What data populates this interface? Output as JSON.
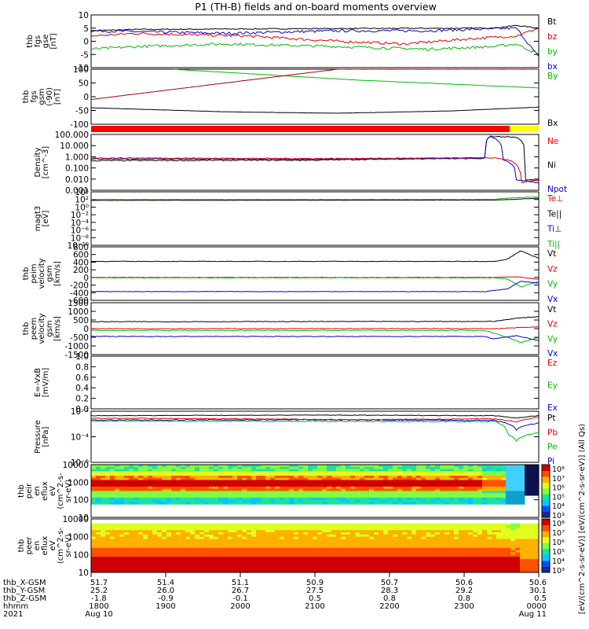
{
  "chart_data": {
    "type": "line",
    "title": "P1  (TH-B)  fields and on-board moments overview",
    "time_axis": {
      "row_labels": [
        "thb_X-GSM",
        "thb_Y-GSM",
        "thb_Z-GSM",
        "hhmm",
        "2021"
      ],
      "ticks": [
        {
          "x": "51.7",
          "y": "25.2",
          "z": "-1.8",
          "hhmm": "1800",
          "date": "Aug 10"
        },
        {
          "x": "51.4",
          "y": "26.0",
          "z": "-0.9",
          "hhmm": "1900",
          "date": ""
        },
        {
          "x": "51.1",
          "y": "26.7",
          "z": "-0.1",
          "hhmm": "2000",
          "date": ""
        },
        {
          "x": "50.9",
          "y": "27.5",
          "z": "0.5",
          "hhmm": "2100",
          "date": ""
        },
        {
          "x": "50.7",
          "y": "28.3",
          "z": "0.8",
          "hhmm": "2200",
          "date": ""
        },
        {
          "x": "50.6",
          "y": "29.2",
          "z": "0.8",
          "hhmm": "2300",
          "date": ""
        },
        {
          "x": "50.6",
          "y": "30.1",
          "z": "0.5",
          "hhmm": "0000",
          "date": "Aug 11"
        }
      ]
    },
    "panels": [
      {
        "id": "fgs_gse",
        "ylabel": [
          "thb",
          "fgs",
          "gse",
          "[nT]"
        ],
        "yticks": [
          "10",
          "5",
          "0",
          "-5",
          "-10"
        ],
        "legend": [
          {
            "name": "Bt",
            "color": "#000000"
          },
          {
            "name": "bz",
            "color": "#dd0000"
          },
          {
            "name": "by",
            "color": "#00bb00"
          },
          {
            "name": "bx",
            "color": "#0000cc"
          }
        ]
      },
      {
        "id": "fgs_gsm",
        "ylabel": [
          "thb",
          "fgs",
          "gsm",
          "(-90)",
          "[nT]"
        ],
        "yticks": [
          "100",
          "50",
          "0",
          "-50",
          "-100"
        ],
        "legend": [
          {
            "name": "By",
            "color": "#00bb00"
          },
          {
            "name": "Bx",
            "color": "#000000"
          }
        ]
      },
      {
        "id": "density",
        "ylabel": [
          "Density",
          "[cm^-3]"
        ],
        "yticks": [
          "100.000",
          "10.000",
          "1.000",
          "0.100",
          "0.010",
          "0.001"
        ],
        "legend": [
          {
            "name": "Ne",
            "color": "#dd0000"
          },
          {
            "name": "Ni",
            "color": "#000000"
          },
          {
            "name": "Npot",
            "color": "#0000cc"
          }
        ]
      },
      {
        "id": "temp",
        "ylabel": [
          "magt3",
          "[eV]"
        ],
        "yticks": [
          "10⁴",
          "10²",
          "10⁰",
          "10⁻²",
          "10⁻⁴",
          "10⁻⁶",
          "10⁻⁸",
          "10⁻¹⁰"
        ],
        "legend": [
          {
            "name": "Te⊥",
            "color": "#dd0000"
          },
          {
            "name": "Te||",
            "color": "#000000"
          },
          {
            "name": "Ti⊥",
            "color": "#0000cc"
          },
          {
            "name": "Ti||",
            "color": "#00bb00"
          }
        ]
      },
      {
        "id": "ion_vel",
        "ylabel": [
          "thb",
          "peim",
          "velocity",
          "gsm",
          "[km/s]"
        ],
        "yticks": [
          "800",
          "600",
          "400",
          "200",
          "0",
          "-200",
          "-400",
          "-600"
        ],
        "legend": [
          {
            "name": "Vt",
            "color": "#000000"
          },
          {
            "name": "Vz",
            "color": "#dd0000"
          },
          {
            "name": "Vy",
            "color": "#00bb00"
          },
          {
            "name": "Vx",
            "color": "#0000cc"
          }
        ]
      },
      {
        "id": "ele_vel",
        "ylabel": [
          "thb",
          "peem",
          "velocity",
          "gsm",
          "[km/s]"
        ],
        "yticks": [
          "1500",
          "1000",
          "500",
          "0",
          "-500",
          "-1000",
          "-1500"
        ],
        "legend": [
          {
            "name": "Vt",
            "color": "#000000"
          },
          {
            "name": "Vz",
            "color": "#dd0000"
          },
          {
            "name": "Vy",
            "color": "#00bb00"
          },
          {
            "name": "Vx",
            "color": "#0000cc"
          }
        ]
      },
      {
        "id": "efield",
        "ylabel": [
          "E=-VxB",
          "[mV/m]"
        ],
        "yticks": [
          "1.0",
          "0.8",
          "0.6",
          "0.4",
          "0.2",
          "0.0"
        ],
        "legend": [
          {
            "name": "Ez",
            "color": "#dd0000"
          },
          {
            "name": "Ey",
            "color": "#00bb00"
          },
          {
            "name": "Ex",
            "color": "#0000cc"
          }
        ]
      },
      {
        "id": "pressure",
        "ylabel": [
          "Pressure",
          "[nPa]"
        ],
        "yticks": [
          "10⁻²",
          "10⁻⁴",
          "10⁻⁶"
        ],
        "legend": [
          {
            "name": "Pt",
            "color": "#000000"
          },
          {
            "name": "Pb",
            "color": "#dd0000"
          },
          {
            "name": "Pe",
            "color": "#00bb00"
          },
          {
            "name": "Pi",
            "color": "#0000cc"
          }
        ]
      },
      {
        "id": "ion_spec",
        "ylabel": [
          "thb",
          "peir",
          "en",
          "eflux",
          "eV",
          "(cm^2-s-",
          "sr-eV)"
        ],
        "yticks": [
          "10000",
          "1000",
          "100",
          "10"
        ]
      },
      {
        "id": "ele_spec",
        "ylabel": [
          "thb",
          "peer",
          "en",
          "eflux",
          "eV",
          "(cm^2-s-",
          "sr-eV)"
        ],
        "yticks": [
          "10000",
          "1000",
          "100",
          "10"
        ]
      }
    ],
    "colorbar": {
      "label": "[eV/(cm^2-s-sr-eV)]  [eV/(cm^2-s-sr-eV)]  (All Qs)",
      "ion_ticks": [
        "10⁸",
        "10⁷",
        "10⁶",
        "10⁵",
        "10⁴",
        "10³"
      ],
      "ele_ticks": [
        "10⁸",
        "10⁷",
        "10⁶",
        "10⁵",
        "10⁴",
        "10³"
      ]
    },
    "series_approx": {
      "fgs_gse": {
        "range": [
          -10,
          10
        ],
        "Bt": [
          [
            0,
            4
          ],
          [
            0.1,
            4.5
          ],
          [
            0.5,
            4.8
          ],
          [
            0.9,
            5
          ],
          [
            0.95,
            6
          ],
          [
            1,
            5
          ]
        ],
        "bz": [
          [
            0,
            2
          ],
          [
            0.1,
            3
          ],
          [
            0.35,
            2
          ],
          [
            0.55,
            0
          ],
          [
            0.7,
            -1
          ],
          [
            0.85,
            1
          ],
          [
            0.95,
            2
          ],
          [
            1,
            5
          ]
        ],
        "by": [
          [
            0,
            -3
          ],
          [
            0.1,
            -2
          ],
          [
            0.3,
            -1
          ],
          [
            0.55,
            -2
          ],
          [
            0.75,
            -3
          ],
          [
            0.9,
            -2
          ],
          [
            0.95,
            -1
          ],
          [
            1,
            -5
          ]
        ],
        "bx": [
          [
            0,
            4
          ],
          [
            0.3,
            3
          ],
          [
            0.55,
            4
          ],
          [
            0.75,
            4
          ],
          [
            0.95,
            5
          ],
          [
            1,
            -6
          ]
        ]
      },
      "fgs_gsm": {
        "range": [
          -100,
          100
        ],
        "By": [
          [
            0.18,
            100
          ],
          [
            0.6,
            60
          ],
          [
            1,
            32
          ]
        ],
        "Bx": [
          [
            0,
            -40
          ],
          [
            0.3,
            -55
          ],
          [
            0.55,
            -60
          ],
          [
            0.8,
            -52
          ],
          [
            1,
            -38
          ]
        ],
        "R": [
          [
            0,
            -10
          ],
          [
            0.55,
            100
          ]
        ]
      },
      "density": {
        "range": [
          0.001,
          300
        ],
        "Ne": [
          [
            0,
            1.5
          ],
          [
            0.5,
            1.3
          ],
          [
            0.9,
            1.5
          ],
          [
            0.93,
            1
          ],
          [
            0.96,
            0.005
          ],
          [
            1,
            0.01
          ]
        ],
        "Ni": [
          [
            0,
            0.8
          ],
          [
            0.5,
            0.9
          ],
          [
            0.88,
            1.5
          ],
          [
            0.89,
            200
          ],
          [
            0.95,
            150
          ],
          [
            0.97,
            0.01
          ],
          [
            1,
            0.01
          ]
        ],
        "Npot": [
          [
            0,
            1.2
          ],
          [
            0.5,
            1.1
          ],
          [
            0.88,
            1.3
          ],
          [
            0.89,
            200
          ],
          [
            0.92,
            1
          ],
          [
            0.95,
            0.01
          ],
          [
            1,
            0.005
          ]
        ]
      },
      "temp": {
        "range": [
          1e-10,
          100000.0
        ],
        "Te_par": [
          [
            0,
            400
          ],
          [
            0.9,
            500
          ],
          [
            0.95,
            800
          ],
          [
            1,
            1500
          ]
        ],
        "Ti_par": [
          [
            0,
            700
          ],
          [
            0.9,
            700
          ],
          [
            0.97,
            3000
          ],
          [
            1,
            3500
          ]
        ]
      },
      "ion_vel": {
        "range": [
          -600,
          800
        ],
        "Vt": [
          [
            0,
            420
          ],
          [
            0.9,
            420
          ],
          [
            0.93,
            480
          ],
          [
            0.96,
            700
          ],
          [
            1,
            500
          ]
        ],
        "Vz": [
          [
            0,
            0
          ],
          [
            0.9,
            0
          ],
          [
            0.95,
            20
          ],
          [
            1,
            -50
          ]
        ],
        "Vy": [
          [
            0,
            -10
          ],
          [
            0.9,
            -10
          ],
          [
            0.93,
            -40
          ],
          [
            0.96,
            -250
          ],
          [
            1,
            -100
          ]
        ],
        "Vx": [
          [
            0,
            -370
          ],
          [
            0.88,
            -370
          ],
          [
            0.93,
            -300
          ],
          [
            0.96,
            -100
          ],
          [
            1,
            -150
          ]
        ]
      },
      "ele_vel": {
        "range": [
          -1500,
          1500
        ],
        "Vt": [
          [
            0,
            400
          ],
          [
            0.9,
            420
          ],
          [
            0.95,
            600
          ],
          [
            1,
            700
          ]
        ],
        "Vz": [
          [
            0,
            0
          ],
          [
            0.9,
            0
          ],
          [
            1,
            100
          ]
        ],
        "Vy": [
          [
            0,
            -100
          ],
          [
            0.88,
            -100
          ],
          [
            0.93,
            -500
          ],
          [
            0.96,
            -800
          ],
          [
            1,
            -500
          ]
        ],
        "Vx": [
          [
            0,
            -450
          ],
          [
            0.88,
            -450
          ],
          [
            0.9,
            -600
          ],
          [
            0.95,
            -400
          ],
          [
            1,
            -700
          ]
        ]
      },
      "pressure": {
        "range": [
          1e-07,
          0.1
        ],
        "Pt": [
          [
            0,
            0.03
          ],
          [
            0.5,
            0.035
          ],
          [
            0.9,
            0.03
          ],
          [
            0.95,
            0.015
          ],
          [
            1,
            0.03
          ]
        ],
        "Pb": [
          [
            0,
            0.015
          ],
          [
            0.4,
            0.012
          ],
          [
            0.6,
            0.01
          ],
          [
            0.9,
            0.013
          ],
          [
            0.95,
            0.005
          ],
          [
            1,
            0.02
          ]
        ],
        "Pe": [
          [
            0,
            0.007
          ],
          [
            0.9,
            0.006
          ],
          [
            0.93,
            0.0002
          ],
          [
            0.95,
            3e-05
          ],
          [
            1,
            0.0003
          ]
        ],
        "Pi": [
          [
            0,
            0.009
          ],
          [
            0.5,
            0.01
          ],
          [
            0.9,
            0.008
          ],
          [
            0.95,
            0.0006
          ],
          [
            1,
            0.004
          ]
        ]
      }
    }
  }
}
